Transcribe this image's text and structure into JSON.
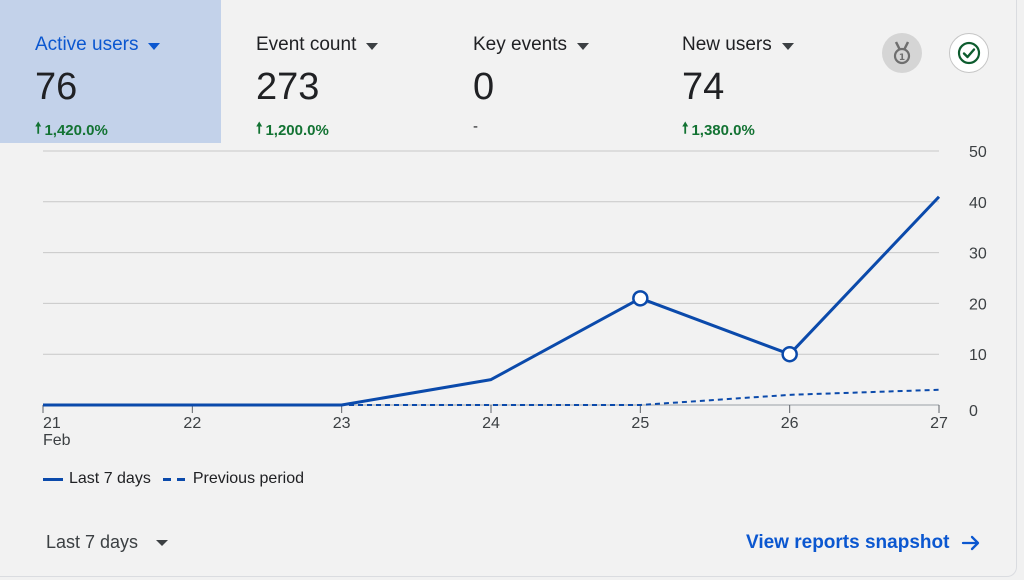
{
  "metrics": [
    {
      "label": "Active users",
      "value": "76",
      "change": "1,420.0%",
      "direction": "up"
    },
    {
      "label": "Event count",
      "value": "273",
      "change": "1,200.0%",
      "direction": "up"
    },
    {
      "label": "Key events",
      "value": "0",
      "change": "-",
      "direction": "none"
    },
    {
      "label": "New users",
      "value": "74",
      "change": "1,380.0%",
      "direction": "up"
    }
  ],
  "icons": {
    "award": "award-medal-icon",
    "check": "check-circle-icon"
  },
  "colors": {
    "accent": "#0b57d0",
    "series": "#0b4aab",
    "positive": "#137333",
    "active_tab": "#c3d2ea"
  },
  "chart_data": {
    "type": "line",
    "categories": [
      "21",
      "22",
      "23",
      "24",
      "25",
      "26",
      "27"
    ],
    "first_tick_sublabel": "Feb",
    "series": [
      {
        "name": "Last 7 days",
        "style": "solid",
        "values": [
          0,
          0,
          0,
          5,
          21,
          10,
          41
        ],
        "markers": [
          4,
          5
        ]
      },
      {
        "name": "Previous period",
        "style": "dashed",
        "values": [
          0,
          0,
          0,
          0,
          0,
          2,
          3
        ]
      }
    ],
    "y_ticks": [
      0,
      10,
      20,
      30,
      40,
      50
    ],
    "ylim": [
      0,
      50
    ],
    "y_axis_side": "right",
    "grid": true,
    "legend_position": "bottom-left"
  },
  "footer": {
    "range_label": "Last 7 days",
    "link_label": "View reports snapshot"
  }
}
